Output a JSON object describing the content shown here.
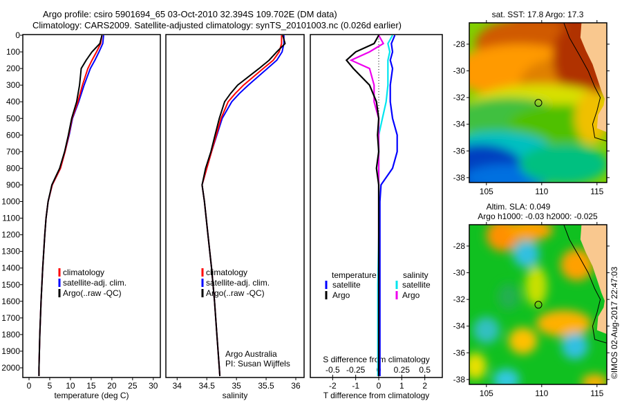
{
  "header": {
    "line1": "Argo profile: csiro 5901694_65 03-Oct-2010 32.394S 109.702E (DM data)",
    "line2": "Climatology: CARS2009. Satellite-adjusted climatology: synTS_20101003.nc (0.026d earlier)"
  },
  "colors": {
    "climatology": "#ff0000",
    "satellite": "#0000ff",
    "argo": "#000000",
    "sal_satellite": "#00e5ee",
    "sal_argo": "#ee00ee",
    "land": "#f9c88f"
  },
  "chart_data": [
    {
      "type": "line",
      "id": "temperature",
      "xlabel": "temperature (deg C)",
      "xlim": [
        -1.5,
        31.7
      ],
      "ylim": [
        2050,
        0
      ],
      "xticks": [
        0,
        5,
        10,
        15,
        20,
        25,
        30
      ],
      "yticks": [
        0,
        100,
        200,
        300,
        400,
        500,
        600,
        700,
        800,
        900,
        1000,
        1100,
        1200,
        1300,
        1400,
        1500,
        1600,
        1700,
        1800,
        1900,
        2000
      ],
      "depth": [
        0,
        50,
        100,
        150,
        200,
        300,
        400,
        500,
        600,
        700,
        800,
        900,
        1000,
        1100,
        1200,
        1400,
        1600,
        1800,
        2000,
        2050
      ],
      "series": [
        {
          "name": "climatology",
          "values": [
            17.6,
            17.3,
            16.3,
            15.2,
            14.2,
            12.9,
            11.8,
            10.4,
            9.6,
            8.7,
            7.6,
            5.6,
            4.6,
            4.1,
            3.8,
            3.3,
            2.9,
            2.6,
            2.4,
            2.4
          ]
        },
        {
          "name": "satellite-adj. clim.",
          "values": [
            18.0,
            17.8,
            16.9,
            15.9,
            14.8,
            13.3,
            12.0,
            10.5,
            9.7,
            8.7,
            7.6,
            5.6,
            4.6,
            4.1,
            3.8,
            3.3,
            2.9,
            2.6,
            2.4,
            2.4
          ]
        },
        {
          "name": "Argo(..raw -QC)",
          "values": [
            17.6,
            17.1,
            15.2,
            13.8,
            12.6,
            12.2,
            11.5,
            10.3,
            9.5,
            8.6,
            7.4,
            5.5,
            4.6,
            4.1,
            3.8,
            3.3,
            2.9,
            2.6,
            2.4,
            2.4
          ]
        }
      ],
      "legend": [
        "climatology",
        "satellite-adj. clim.",
        "Argo(..raw -QC)"
      ]
    },
    {
      "type": "line",
      "id": "salinity",
      "xlabel": "salinity",
      "xlim": [
        33.81,
        36.14
      ],
      "ylim": [
        2050,
        0
      ],
      "xticks": [
        34,
        34.5,
        35,
        35.5,
        36
      ],
      "depth": [
        0,
        50,
        100,
        150,
        200,
        300,
        350,
        400,
        500,
        600,
        700,
        800,
        900,
        1000,
        1200,
        1400,
        1600,
        1800,
        2000,
        2050
      ],
      "series": [
        {
          "name": "climatology",
          "values": [
            35.76,
            35.76,
            35.72,
            35.62,
            35.45,
            35.12,
            34.98,
            34.86,
            34.74,
            34.66,
            34.58,
            34.5,
            34.42,
            34.46,
            34.52,
            34.58,
            34.63,
            34.67,
            34.71,
            34.72
          ]
        },
        {
          "name": "satellite-adj. clim.",
          "values": [
            35.8,
            35.8,
            35.77,
            35.68,
            35.52,
            35.2,
            35.05,
            34.92,
            34.76,
            34.67,
            34.58,
            34.5,
            34.42,
            34.46,
            34.52,
            34.58,
            34.63,
            34.67,
            34.71,
            34.72
          ]
        },
        {
          "name": "Argo(..raw -QC)",
          "values": [
            35.78,
            35.82,
            35.68,
            35.55,
            35.38,
            35.02,
            34.9,
            34.8,
            34.71,
            34.64,
            34.57,
            34.48,
            34.42,
            34.46,
            34.52,
            34.58,
            34.63,
            34.67,
            34.71,
            34.72
          ]
        }
      ],
      "legend": [
        "climatology",
        "satellite-adj. clim.",
        "Argo(..raw -QC)"
      ],
      "annotation": [
        "Argo Australia",
        "PI: Susan Wijffels"
      ]
    },
    {
      "type": "line",
      "id": "difference",
      "xlabel": "T difference from climatology",
      "x2label": "S difference from climatology",
      "xlim": [
        -2.97,
        2.76
      ],
      "ylim": [
        2050,
        0
      ],
      "xticks": [
        -2,
        -1,
        0,
        1,
        2
      ],
      "x2ticks": [
        "-0.5",
        "-0.25",
        "0",
        "0.25",
        "0.5"
      ],
      "x2values": [
        -0.5,
        -0.25,
        0,
        0.25,
        0.5
      ],
      "depth": [
        0,
        50,
        100,
        150,
        200,
        300,
        400,
        500,
        600,
        700,
        800,
        900,
        1000,
        1200,
        1500,
        2000,
        2050
      ],
      "series": [
        {
          "name": "T satellite",
          "units": "T",
          "values": [
            0.7,
            0.55,
            0.6,
            0.5,
            0.6,
            0.5,
            0.5,
            0.6,
            0.8,
            0.8,
            0.6,
            0.1,
            0.05,
            0.05,
            0.05,
            0.05,
            0.05
          ]
        },
        {
          "name": "T Argo",
          "units": "T",
          "values": [
            0,
            -0.2,
            -1.0,
            -1.4,
            -1.1,
            -0.4,
            -0.1,
            0,
            -0.05,
            0,
            -0.1,
            0,
            0,
            0,
            0,
            0,
            0
          ]
        },
        {
          "name": "S satellite",
          "units": "S",
          "values": [
            0.15,
            0.1,
            0.12,
            0.1,
            0.1,
            0.1,
            0.08,
            0.04,
            0.0,
            0.0,
            0.0,
            0.0,
            0.0,
            0.0,
            -0.01,
            -0.01,
            -0.01
          ]
        },
        {
          "name": "S Argo",
          "units": "S",
          "values": [
            0.0,
            0.05,
            -0.1,
            -0.3,
            -0.1,
            -0.05,
            -0.05,
            0,
            0,
            0,
            0,
            0,
            0,
            0,
            0,
            0,
            0
          ]
        }
      ],
      "legend_titles": [
        "temperature",
        "salinity"
      ],
      "legend": [
        "satellite",
        "Argo",
        "satellite",
        "Argo"
      ]
    }
  ],
  "maps": {
    "sst": {
      "title": "sat. SST: 17.8 Argo: 17.3",
      "lon_ticks": [
        "105",
        "110",
        "115"
      ],
      "lat_ticks": [
        "-28",
        "-30",
        "-32",
        "-34",
        "-36",
        "-38"
      ],
      "argo_lon": 109.7,
      "argo_lat": -32.4
    },
    "sla": {
      "title1": "Altim. SLA: 0.049",
      "title2": "Argo h1000: -0.03 h2000: -0.025",
      "lon_ticks": [
        "105",
        "110",
        "115"
      ],
      "lat_ticks": [
        "-28",
        "-30",
        "-32",
        "-34",
        "-36",
        "-38"
      ],
      "argo_lon": 109.7,
      "argo_lat": -32.4
    },
    "credit": "©IMOS 02-Aug-2017 22:47:03"
  }
}
